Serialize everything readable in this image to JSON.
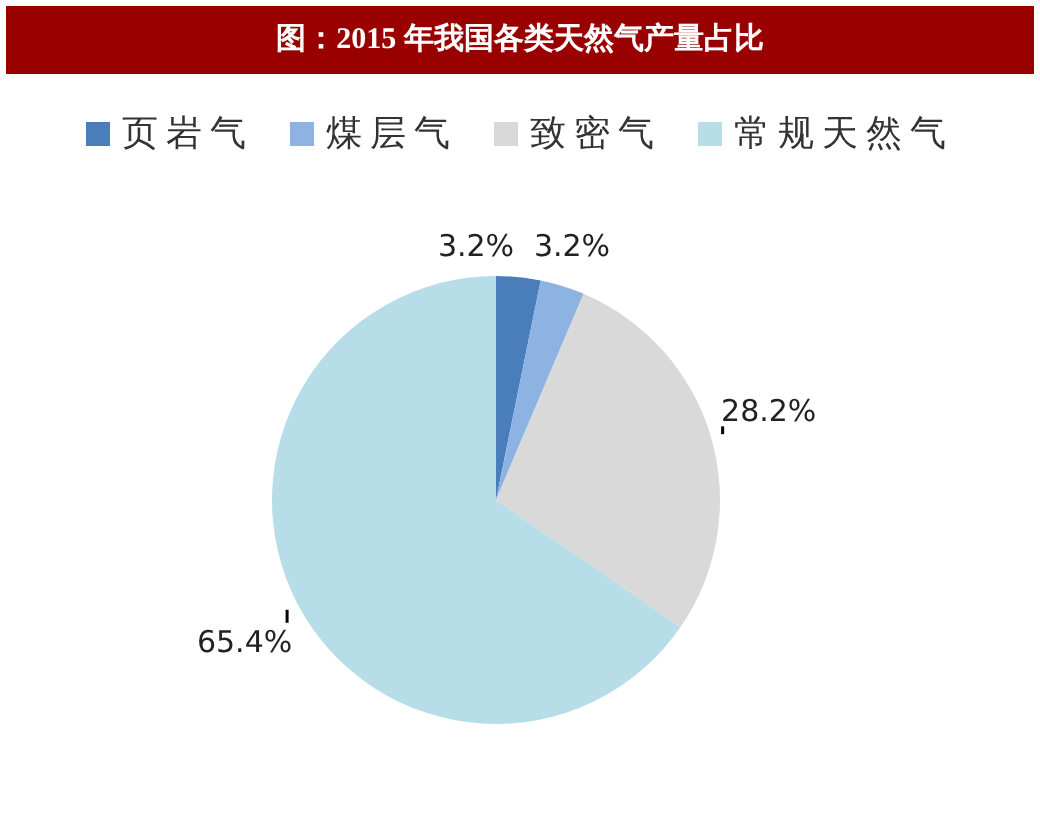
{
  "chart_data": {
    "type": "pie",
    "title": "图：2015 年我国各类天然气产量占比",
    "categories": [
      "页岩气",
      "煤层气",
      "致密气",
      "常规天然气"
    ],
    "values": [
      3.2,
      3.2,
      28.2,
      65.4
    ],
    "colors": [
      "#4a7ebb",
      "#8db3e2",
      "#d9d9d9",
      "#b7dde8"
    ],
    "value_labels": [
      "3.2%",
      "3.2%",
      "28.2%",
      "65.4%"
    ],
    "legend": "top"
  }
}
